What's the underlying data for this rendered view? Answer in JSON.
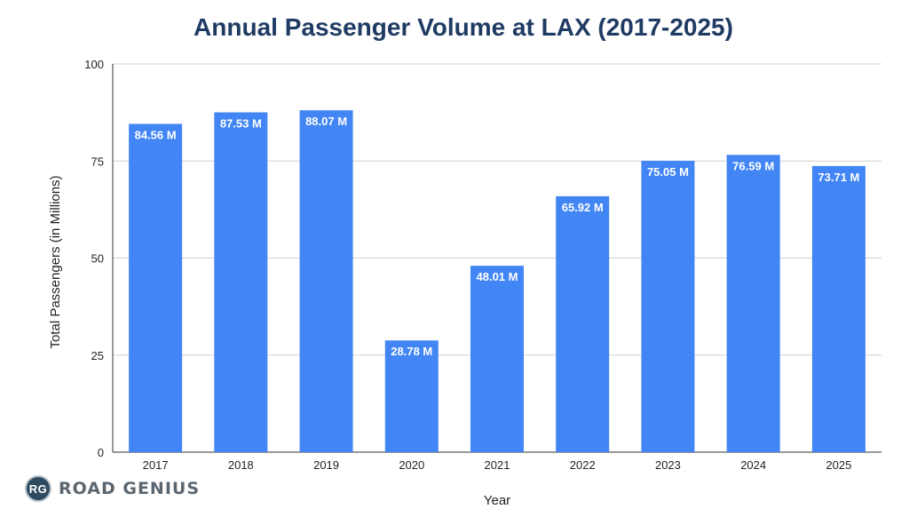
{
  "chart_data": {
    "type": "bar",
    "title": "Annual Passenger Volume at LAX (2017-2025)",
    "xlabel": "Year",
    "ylabel": "Total Passengers (in Millions)",
    "categories": [
      "2017",
      "2018",
      "2019",
      "2020",
      "2021",
      "2022",
      "2023",
      "2024",
      "2025"
    ],
    "values": [
      84.56,
      87.53,
      88.07,
      28.78,
      48.01,
      65.92,
      75.05,
      76.59,
      73.71
    ],
    "data_labels": [
      "84.56 M",
      "87.53 M",
      "88.07 M",
      "28.78 M",
      "48.01 M",
      "65.92 M",
      "75.05 M",
      "76.59 M",
      "73.71 M"
    ],
    "ylim": [
      0,
      100
    ],
    "yticks": [
      0,
      25,
      50,
      75,
      100
    ],
    "grid": true,
    "bar_color": "#4285f4",
    "title_color": "#1f3b63"
  },
  "branding": {
    "badge_text": "RG",
    "name": "ROAD GENIUS"
  }
}
